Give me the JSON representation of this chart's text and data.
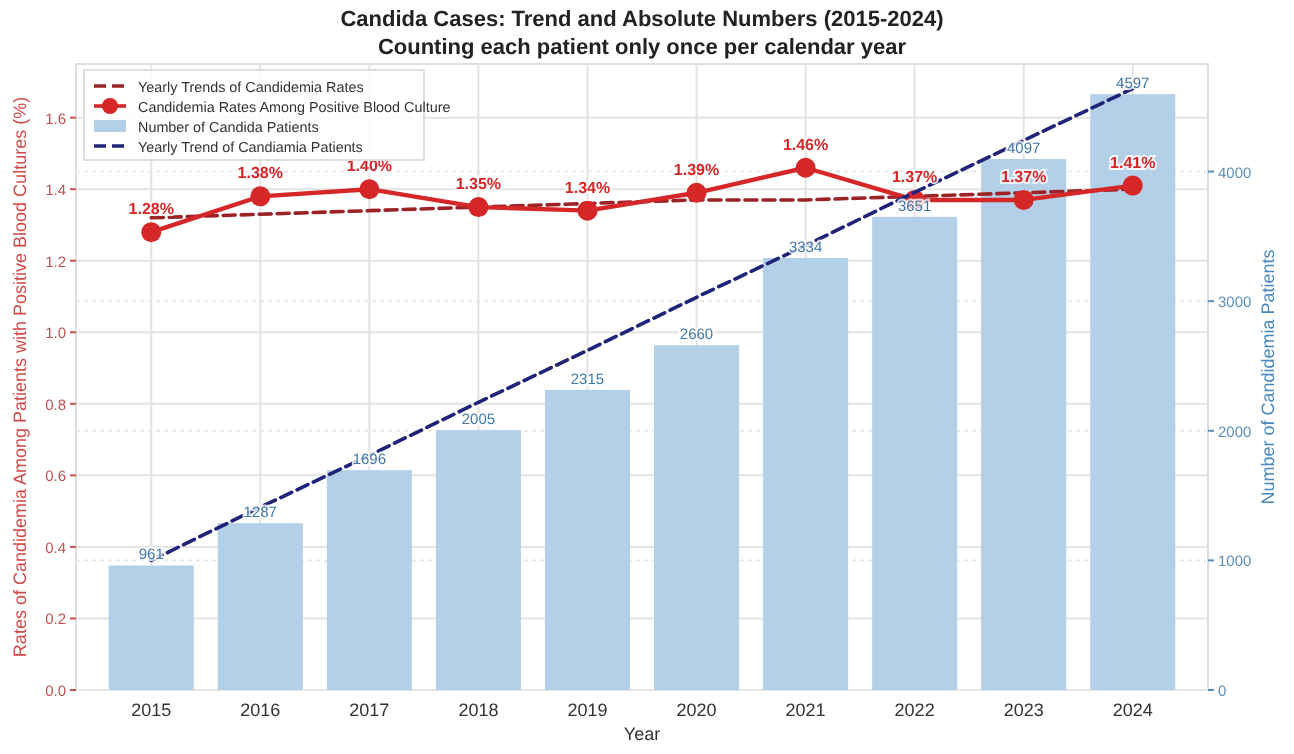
{
  "chart_data": {
    "type": "bar",
    "title": "Candida Cases: Trend and Absolute Numbers (2015-2024)",
    "subtitle": "Counting each patient only once per calendar year",
    "xlabel": "Year",
    "ylabel": "Rates of Candidemia Among Patients with Positive Blood Cultures (%)",
    "y2label": "Number of Candidemia Patients",
    "categories": [
      "2015",
      "2016",
      "2017",
      "2018",
      "2019",
      "2020",
      "2021",
      "2022",
      "2023",
      "2024"
    ],
    "series": [
      {
        "name": "Yearly Trends of Candidemia Rates",
        "type": "line",
        "color": "#9b2226",
        "line_style": "dashed",
        "marker": "none",
        "values": [
          1.32,
          1.33,
          1.34,
          1.35,
          1.36,
          1.37,
          1.37,
          1.38,
          1.39,
          1.4
        ]
      },
      {
        "name": "Candidemia Rates Among Positive Blood Culture",
        "type": "line",
        "color": "#d62728",
        "line_style": "solid",
        "marker": "circle",
        "values": [
          1.28,
          1.38,
          1.4,
          1.35,
          1.34,
          1.39,
          1.46,
          1.37,
          1.37,
          1.41
        ],
        "value_labels": [
          "1.28%",
          "1.38%",
          "1.40%",
          "1.35%",
          "1.34%",
          "1.39%",
          "1.46%",
          "1.37%",
          "1.37%",
          "1.41%"
        ]
      },
      {
        "name": "Number of Candida Patients",
        "axis": "y2",
        "color": "#b4d0e8",
        "values": [
          961,
          1287,
          1696,
          2005,
          2315,
          2660,
          3334,
          3651,
          4097,
          4597
        ],
        "value_labels": [
          "961",
          "1287",
          "1696",
          "2005",
          "2315",
          "2660",
          "3334",
          "3651",
          "4097",
          "4597"
        ]
      },
      {
        "name": "Yearly Trend of Candiamia Patients",
        "type": "line",
        "axis": "y2",
        "color": "#1f237a",
        "line_style": "dashed",
        "marker": "none",
        "values": [
          1000,
          1410,
          1810,
          2220,
          2620,
          3030,
          3430,
          3840,
          4240,
          4640
        ]
      }
    ],
    "ylim": [
      0,
      1.75
    ],
    "yticks": [
      {
        "value": 0,
        "label": "0.0"
      },
      0.2,
      0.4,
      0.6,
      0.8,
      {
        "value": 1,
        "label": "1.0"
      },
      1.2,
      1.4,
      1.6
    ],
    "y2lim": [
      0,
      4830
    ],
    "y2ticks": [
      0,
      1000,
      2000,
      3000,
      4000
    ],
    "grid": true,
    "legend": "top left"
  }
}
